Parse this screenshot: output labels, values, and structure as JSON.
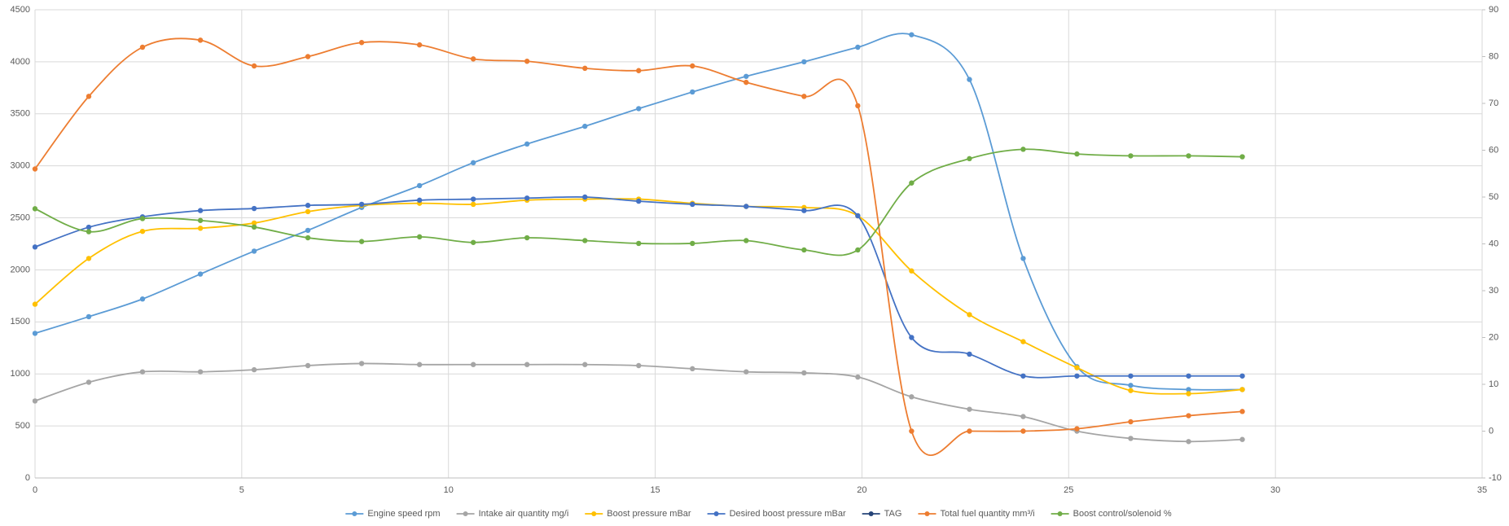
{
  "chart_data": {
    "type": "line",
    "x": [
      0,
      1.3,
      2.6,
      4.0,
      5.3,
      6.6,
      7.9,
      9.3,
      10.6,
      11.9,
      13.3,
      14.6,
      15.9,
      17.2,
      18.6,
      19.9,
      21.2,
      22.6,
      23.9,
      25.2,
      26.5,
      27.9,
      29.2
    ],
    "xlim": [
      0,
      35
    ],
    "xticks": [
      0,
      5,
      10,
      15,
      20,
      25,
      30,
      35
    ],
    "ylim": [
      0,
      4500
    ],
    "yticks": [
      0,
      500,
      1000,
      1500,
      2000,
      2500,
      3000,
      3500,
      4000,
      4500
    ],
    "y2lim": [
      -10,
      90
    ],
    "y2ticks": [
      -10,
      0,
      10,
      20,
      30,
      40,
      50,
      60,
      70,
      80,
      90
    ],
    "grid": true,
    "legend": "bottom",
    "smooth": true,
    "series": [
      {
        "name": "Engine speed rpm",
        "color": "#5b9bd5",
        "values": [
          1390,
          1550,
          1720,
          1960,
          2180,
          2380,
          2600,
          2810,
          3030,
          3210,
          3380,
          3550,
          3710,
          3860,
          4000,
          4140,
          4260,
          3830,
          2110,
          1070,
          890,
          850,
          850
        ]
      },
      {
        "name": "Intake air quantity mg/i",
        "color": "#a5a5a5",
        "values": [
          740,
          920,
          1020,
          1020,
          1040,
          1080,
          1100,
          1090,
          1090,
          1090,
          1090,
          1080,
          1050,
          1020,
          1010,
          970,
          780,
          660,
          590,
          450,
          380,
          350,
          370
        ]
      },
      {
        "name": "Boost pressure mBar",
        "color": "#ffc000",
        "values": [
          1670,
          2110,
          2370,
          2400,
          2450,
          2560,
          2620,
          2640,
          2630,
          2670,
          2680,
          2680,
          2640,
          2610,
          2600,
          2520,
          1990,
          1570,
          1310,
          1060,
          840,
          810,
          850
        ]
      },
      {
        "name": "Desired boost pressure mBar",
        "color": "#4472c4",
        "values": [
          2220,
          2410,
          2510,
          2570,
          2590,
          2620,
          2630,
          2670,
          2680,
          2690,
          2700,
          2660,
          2630,
          2610,
          2570,
          2520,
          1350,
          1190,
          980,
          980,
          980,
          980,
          980
        ]
      },
      {
        "name": "TAG",
        "color": "#264478",
        "values": [
          null,
          null,
          null,
          null,
          null,
          null,
          null,
          null,
          null,
          null,
          null,
          null,
          null,
          null,
          null,
          null,
          null,
          null,
          null,
          null,
          null,
          null,
          null
        ]
      },
      {
        "name": "Total fuel quantity mm³/i",
        "color": "#ed7d31",
        "axis": "y2",
        "values": [
          56,
          71.5,
          82,
          83.5,
          78,
          80,
          83,
          82.5,
          79.5,
          79,
          77.5,
          77,
          78,
          74.5,
          71.5,
          69.5,
          0,
          0,
          0,
          0.5,
          2,
          3.3,
          4.2
        ]
      },
      {
        "name": "Boost control/solenoid %",
        "color": "#70ad47",
        "axis": "y2",
        "values": [
          47.5,
          42.6,
          45.4,
          45,
          43.6,
          41.3,
          40.5,
          41.5,
          40.3,
          41.3,
          40.7,
          40.1,
          40.1,
          40.7,
          38.7,
          38.7,
          53,
          58.2,
          60.2,
          59.2,
          58.8,
          58.8,
          58.6
        ]
      }
    ]
  }
}
